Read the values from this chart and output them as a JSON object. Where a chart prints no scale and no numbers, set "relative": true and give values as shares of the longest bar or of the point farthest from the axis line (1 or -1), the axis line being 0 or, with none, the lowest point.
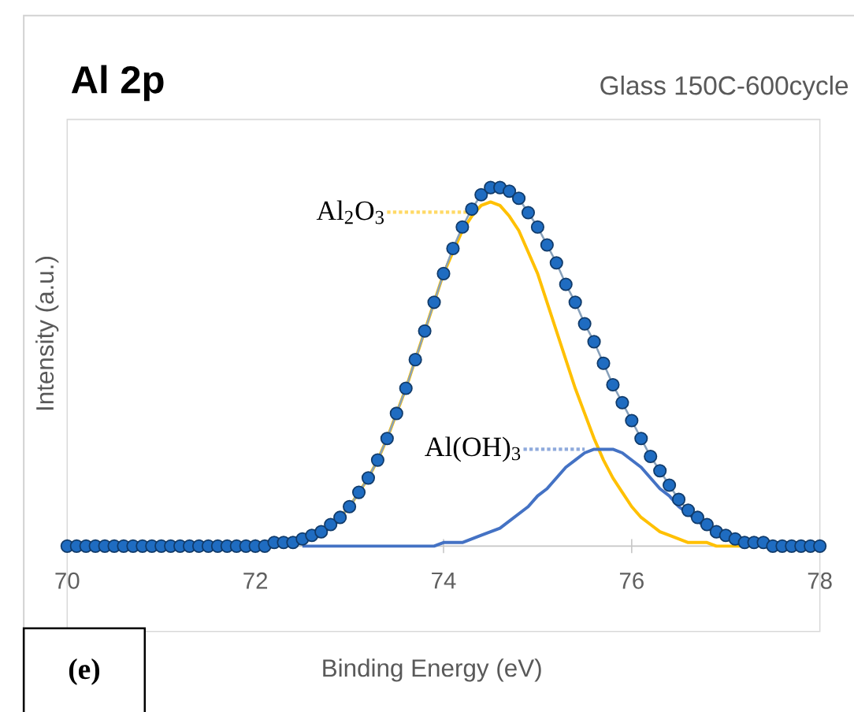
{
  "chart_data": {
    "type": "line",
    "title": "Al 2p",
    "subtitle": "Glass 150C-600cycle",
    "xlabel": "Binding Energy (eV)",
    "ylabel": "Intensity (a.u.)",
    "annotations": [
      "(e)"
    ],
    "relative": true,
    "xlim": [
      70,
      78
    ],
    "xticks": [
      70,
      72,
      74,
      76,
      78
    ],
    "grid": false,
    "legend": false,
    "series": [
      {
        "name": "Al$_{2}$O$_{3}$",
        "color": "#ffc000",
        "marker": "none",
        "x": [
          72.9,
          73.0,
          73.1,
          73.2,
          73.3,
          73.4,
          73.5,
          73.6,
          73.7,
          73.8,
          73.9,
          74.0,
          74.1,
          74.2,
          74.3,
          74.4,
          74.5,
          74.6,
          74.7,
          74.8,
          74.9,
          75.0,
          75.1,
          75.2,
          75.3,
          75.4,
          75.5,
          75.6,
          75.7,
          75.8,
          75.9,
          76.0,
          76.1,
          76.2,
          76.3,
          76.4,
          76.5,
          76.6,
          76.7,
          76.8,
          76.9,
          77.0,
          77.1,
          77.2,
          77.3
        ],
        "values": [
          0.08,
          0.11,
          0.15,
          0.19,
          0.24,
          0.3,
          0.37,
          0.44,
          0.52,
          0.6,
          0.68,
          0.76,
          0.82,
          0.88,
          0.92,
          0.95,
          0.96,
          0.95,
          0.92,
          0.88,
          0.82,
          0.76,
          0.68,
          0.6,
          0.52,
          0.44,
          0.37,
          0.3,
          0.24,
          0.19,
          0.15,
          0.11,
          0.08,
          0.06,
          0.04,
          0.03,
          0.02,
          0.01,
          0.01,
          0.01,
          0,
          0,
          0,
          0,
          0
        ]
      },
      {
        "name": "Al(OH)$_{3}$",
        "color": "#4472c4",
        "marker": "none",
        "x": [
          72.5,
          72.6,
          72.7,
          72.8,
          72.9,
          73.0,
          73.1,
          73.2,
          73.3,
          73.4,
          73.5,
          73.6,
          73.7,
          73.8,
          73.9,
          74.0,
          74.1,
          74.2,
          74.3,
          74.4,
          74.5,
          74.6,
          74.7,
          74.8,
          74.9,
          75.0,
          75.1,
          75.2,
          75.3,
          75.4,
          75.5,
          75.6,
          75.7,
          75.8,
          75.9,
          76.0,
          76.1,
          76.2,
          76.3,
          76.4,
          76.5,
          76.6,
          76.7,
          76.8,
          76.9,
          77.0,
          77.1,
          77.2,
          77.3,
          77.4,
          77.5
        ],
        "values": [
          0,
          0,
          0,
          0,
          0,
          0,
          0,
          0,
          0,
          0,
          0,
          0,
          0,
          0,
          0,
          0.01,
          0.01,
          0.01,
          0.02,
          0.03,
          0.04,
          0.05,
          0.07,
          0.09,
          0.11,
          0.14,
          0.16,
          0.19,
          0.22,
          0.24,
          0.26,
          0.27,
          0.27,
          0.27,
          0.26,
          0.24,
          0.22,
          0.19,
          0.16,
          0.14,
          0.11,
          0.09,
          0.07,
          0.05,
          0.04,
          0.03,
          0.02,
          0.01,
          0.01,
          0.01,
          0
        ]
      },
      {
        "color": "#1f6cc1",
        "marker": "circle",
        "x": [
          70.0,
          70.1,
          70.2,
          70.3,
          70.4,
          70.5,
          70.6,
          70.7,
          70.8,
          70.9,
          71.0,
          71.1,
          71.2,
          71.3,
          71.4,
          71.5,
          71.6,
          71.7,
          71.8,
          71.9,
          72.0,
          72.1,
          72.2,
          72.3,
          72.4,
          72.5,
          72.6,
          72.7,
          72.8,
          72.9,
          73.0,
          73.1,
          73.2,
          73.3,
          73.4,
          73.5,
          73.6,
          73.7,
          73.8,
          73.9,
          74.0,
          74.1,
          74.2,
          74.3,
          74.4,
          74.5,
          74.6,
          74.7,
          74.8,
          74.9,
          75.0,
          75.1,
          75.2,
          75.3,
          75.4,
          75.5,
          75.6,
          75.7,
          75.8,
          75.9,
          76.0,
          76.1,
          76.2,
          76.3,
          76.4,
          76.5,
          76.6,
          76.7,
          76.8,
          76.9,
          77.0,
          77.1,
          77.2,
          77.3,
          77.4,
          77.5,
          77.6,
          77.7,
          77.8,
          77.9,
          78.0
        ],
        "values": [
          0,
          0,
          0,
          0,
          0,
          0,
          0,
          0,
          0,
          0,
          0,
          0,
          0,
          0,
          0,
          0,
          0,
          0,
          0,
          0,
          0,
          0,
          0.01,
          0.01,
          0.01,
          0.02,
          0.03,
          0.04,
          0.06,
          0.08,
          0.11,
          0.15,
          0.19,
          0.24,
          0.3,
          0.37,
          0.44,
          0.52,
          0.6,
          0.68,
          0.76,
          0.83,
          0.89,
          0.94,
          0.98,
          1.0,
          1.0,
          0.99,
          0.97,
          0.93,
          0.89,
          0.84,
          0.79,
          0.73,
          0.68,
          0.62,
          0.57,
          0.51,
          0.45,
          0.4,
          0.35,
          0.3,
          0.25,
          0.21,
          0.17,
          0.13,
          0.1,
          0.08,
          0.06,
          0.04,
          0.03,
          0.02,
          0.01,
          0.01,
          0.01,
          0,
          0,
          0,
          0,
          0,
          0
        ]
      }
    ]
  }
}
